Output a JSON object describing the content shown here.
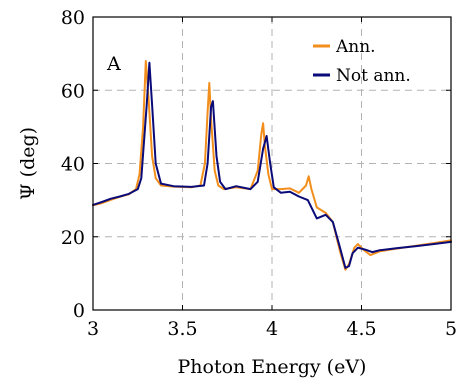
{
  "chart_data": {
    "type": "line",
    "title": "",
    "panel_label": "A",
    "xlabel": "Photon Energy (eV)",
    "ylabel": "Ψ (deg)",
    "xlim": [
      3,
      5
    ],
    "ylim": [
      0,
      80
    ],
    "xticks": [
      3,
      3.5,
      4,
      4.5,
      5
    ],
    "xtick_labels": [
      "3",
      "3.5",
      "4",
      "4.5",
      "5"
    ],
    "yticks": [
      0,
      20,
      40,
      60,
      80
    ],
    "ytick_labels": [
      "0",
      "20",
      "40",
      "60",
      "80"
    ],
    "grid": true,
    "legend_position": "top-right",
    "series": [
      {
        "name": "Ann.",
        "color": "#f28e1c",
        "points": [
          [
            3.0,
            28.6
          ],
          [
            3.05,
            29.2
          ],
          [
            3.1,
            30.1
          ],
          [
            3.15,
            30.9
          ],
          [
            3.2,
            31.6
          ],
          [
            3.24,
            33.0
          ],
          [
            3.26,
            37.0
          ],
          [
            3.28,
            50.0
          ],
          [
            3.295,
            68.0
          ],
          [
            3.31,
            58.0
          ],
          [
            3.33,
            42.0
          ],
          [
            3.35,
            36.0
          ],
          [
            3.38,
            34.0
          ],
          [
            3.45,
            33.7
          ],
          [
            3.55,
            33.5
          ],
          [
            3.6,
            34.0
          ],
          [
            3.625,
            40.0
          ],
          [
            3.64,
            54.0
          ],
          [
            3.65,
            62.0
          ],
          [
            3.66,
            52.0
          ],
          [
            3.68,
            38.0
          ],
          [
            3.7,
            34.0
          ],
          [
            3.73,
            33.0
          ],
          [
            3.8,
            33.5
          ],
          [
            3.88,
            33.0
          ],
          [
            3.92,
            38.0
          ],
          [
            3.94,
            48.0
          ],
          [
            3.95,
            51.0
          ],
          [
            3.96,
            45.0
          ],
          [
            3.98,
            37.0
          ],
          [
            4.0,
            33.0
          ],
          [
            4.05,
            33.0
          ],
          [
            4.1,
            33.2
          ],
          [
            4.15,
            32.0
          ],
          [
            4.19,
            34.0
          ],
          [
            4.205,
            36.5
          ],
          [
            4.22,
            33.0
          ],
          [
            4.25,
            28.0
          ],
          [
            4.3,
            26.5
          ],
          [
            4.34,
            24.0
          ],
          [
            4.38,
            16.0
          ],
          [
            4.41,
            11.0
          ],
          [
            4.43,
            12.5
          ],
          [
            4.46,
            17.0
          ],
          [
            4.48,
            18.0
          ],
          [
            4.51,
            16.5
          ],
          [
            4.55,
            15.0
          ],
          [
            4.6,
            16.0
          ],
          [
            4.7,
            16.8
          ],
          [
            4.8,
            17.5
          ],
          [
            4.9,
            18.2
          ],
          [
            5.0,
            19.0
          ]
        ]
      },
      {
        "name": "Not ann.",
        "color": "#0a0a78",
        "points": [
          [
            3.0,
            28.7
          ],
          [
            3.05,
            29.5
          ],
          [
            3.1,
            30.4
          ],
          [
            3.15,
            31.0
          ],
          [
            3.2,
            31.7
          ],
          [
            3.25,
            33.0
          ],
          [
            3.27,
            36.0
          ],
          [
            3.3,
            56.0
          ],
          [
            3.315,
            67.5
          ],
          [
            3.33,
            56.0
          ],
          [
            3.35,
            40.0
          ],
          [
            3.38,
            34.5
          ],
          [
            3.45,
            33.8
          ],
          [
            3.55,
            33.6
          ],
          [
            3.62,
            34.0
          ],
          [
            3.64,
            40.0
          ],
          [
            3.66,
            55.5
          ],
          [
            3.67,
            57.0
          ],
          [
            3.69,
            42.0
          ],
          [
            3.71,
            35.0
          ],
          [
            3.74,
            33.0
          ],
          [
            3.8,
            33.8
          ],
          [
            3.88,
            33.0
          ],
          [
            3.92,
            35.0
          ],
          [
            3.95,
            44.0
          ],
          [
            3.97,
            47.5
          ],
          [
            3.99,
            40.0
          ],
          [
            4.01,
            33.5
          ],
          [
            4.05,
            32.0
          ],
          [
            4.1,
            32.3
          ],
          [
            4.15,
            31.0
          ],
          [
            4.2,
            30.0
          ],
          [
            4.25,
            25.0
          ],
          [
            4.3,
            26.0
          ],
          [
            4.34,
            24.0
          ],
          [
            4.38,
            17.0
          ],
          [
            4.41,
            11.5
          ],
          [
            4.43,
            12.0
          ],
          [
            4.45,
            15.5
          ],
          [
            4.48,
            17.0
          ],
          [
            4.52,
            16.5
          ],
          [
            4.56,
            15.8
          ],
          [
            4.6,
            16.3
          ],
          [
            4.7,
            16.9
          ],
          [
            4.8,
            17.4
          ],
          [
            4.9,
            18.0
          ],
          [
            5.0,
            18.6
          ]
        ]
      }
    ]
  }
}
